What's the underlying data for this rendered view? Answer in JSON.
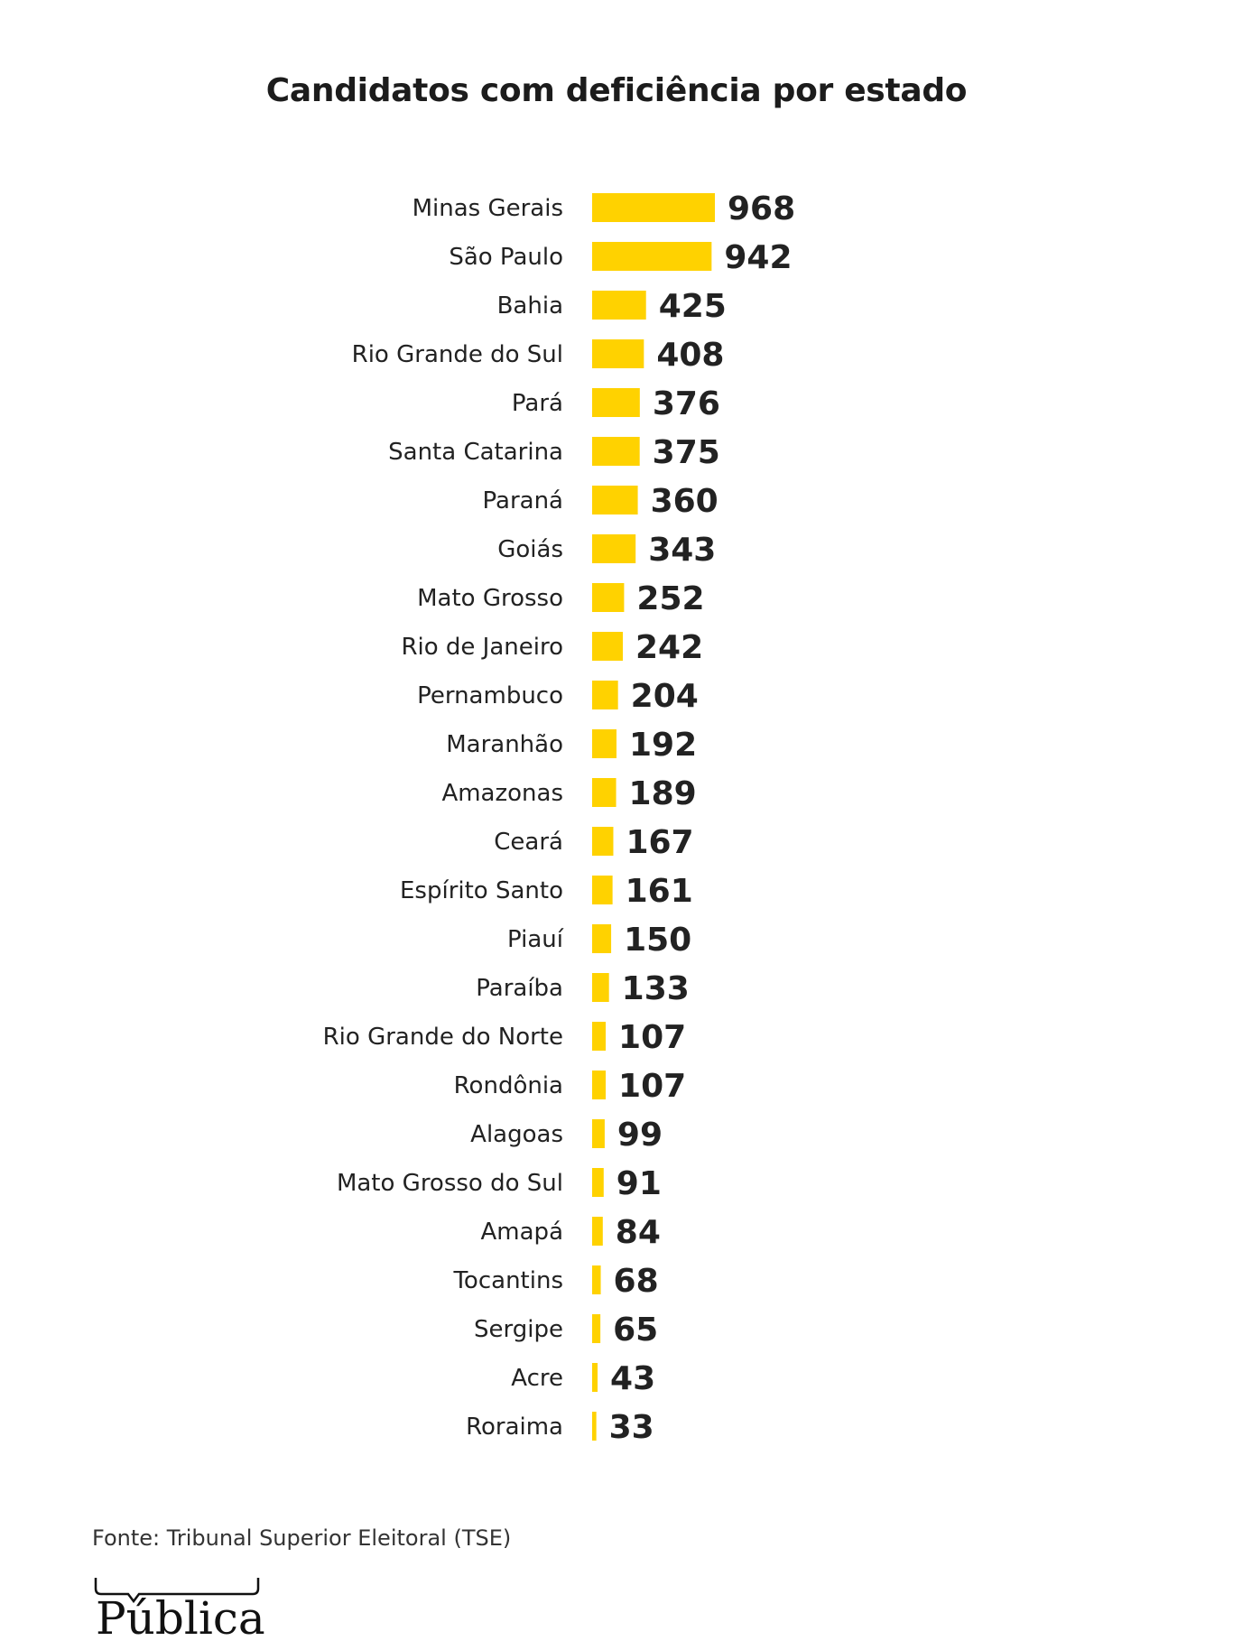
{
  "chart_data": {
    "type": "bar",
    "orientation": "horizontal",
    "title": "Candidatos com deficiência por estado",
    "categories": [
      "Minas Gerais",
      "São Paulo",
      "Bahia",
      "Rio Grande do Sul",
      "Pará",
      "Santa Catarina",
      "Paraná",
      "Goiás",
      "Mato Grosso",
      "Rio de Janeiro",
      "Pernambuco",
      "Maranhão",
      "Amazonas",
      "Ceará",
      "Espírito Santo",
      "Piauí",
      "Paraíba",
      "Rio Grande do Norte",
      "Rondônia",
      "Alagoas",
      "Mato Grosso do Sul",
      "Amapá",
      "Tocantins",
      "Sergipe",
      "Acre",
      "Roraima"
    ],
    "values": [
      968,
      942,
      425,
      408,
      376,
      375,
      360,
      343,
      252,
      242,
      204,
      192,
      189,
      167,
      161,
      150,
      133,
      107,
      107,
      99,
      91,
      84,
      68,
      65,
      43,
      33
    ],
    "bar_color": "#FFD200",
    "grid": false,
    "legend": false
  },
  "source": "Fonte: Tribunal Superior Eleitoral (TSE)",
  "logo": {
    "text": "Pública"
  }
}
